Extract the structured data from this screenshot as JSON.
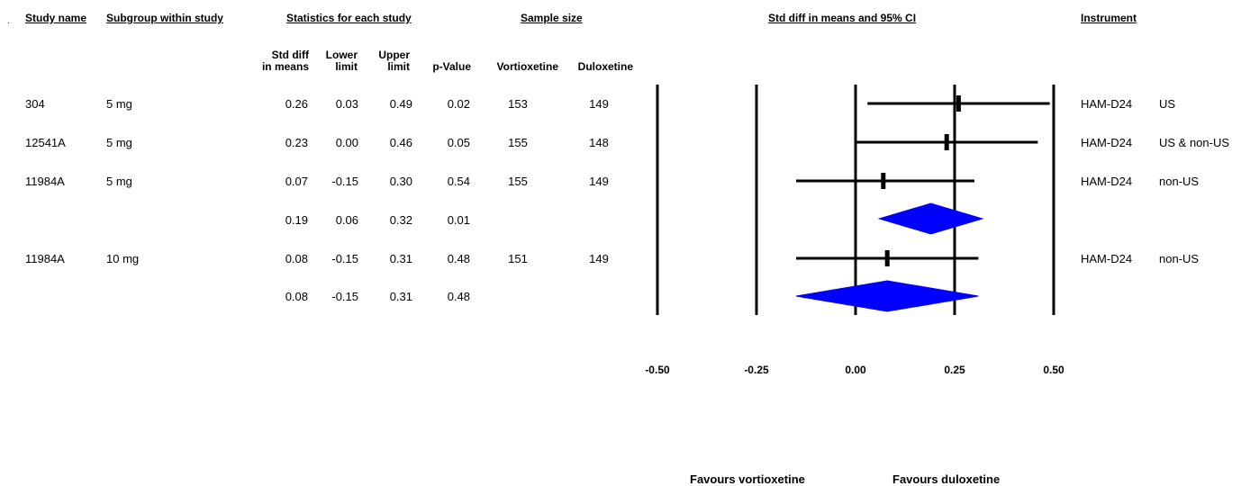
{
  "headers": {
    "study_name": "Study name",
    "subgroup": "Subgroup within study",
    "statistics": "Statistics for each study",
    "sample_size": "Sample size",
    "ci_title": "Std diff in means and 95% CI",
    "instrument": "Instrument"
  },
  "subheaders": {
    "std_diff_1": "Std diff",
    "std_diff_2": "in means",
    "lower_1": "Lower",
    "lower_2": "limit",
    "upper_1": "Upper",
    "upper_2": "limit",
    "pvalue": "p-Value",
    "vortioxetine": "Vortioxetine",
    "duloxetine": "Duloxetine"
  },
  "rows": [
    {
      "study": "304",
      "subgroup": "5 mg",
      "std_diff": "0.26",
      "lower": "0.03",
      "upper": "0.49",
      "p": "0.02",
      "vort": "153",
      "dulo": "149",
      "instrument": "HAM-D24",
      "region": "US"
    },
    {
      "study": "12541A",
      "subgroup": "5 mg",
      "std_diff": "0.23",
      "lower": "0.00",
      "upper": "0.46",
      "p": "0.05",
      "vort": "155",
      "dulo": "148",
      "instrument": "HAM-D24",
      "region": "US & non-US"
    },
    {
      "study": "11984A",
      "subgroup": "5 mg",
      "std_diff": "0.07",
      "lower": "-0.15",
      "upper": "0.30",
      "p": "0.54",
      "vort": "155",
      "dulo": "149",
      "instrument": "HAM-D24",
      "region": "non-US"
    },
    {
      "study": "",
      "subgroup": "",
      "std_diff": "0.19",
      "lower": "0.06",
      "upper": "0.32",
      "p": "0.01",
      "vort": "",
      "dulo": "",
      "instrument": "",
      "region": ""
    },
    {
      "study": "11984A",
      "subgroup": "10 mg",
      "std_diff": "0.08",
      "lower": "-0.15",
      "upper": "0.31",
      "p": "0.48",
      "vort": "151",
      "dulo": "149",
      "instrument": "HAM-D24",
      "region": "non-US"
    },
    {
      "study": "",
      "subgroup": "",
      "std_diff": "0.08",
      "lower": "-0.15",
      "upper": "0.31",
      "p": "0.48",
      "vort": "",
      "dulo": "",
      "instrument": "",
      "region": ""
    }
  ],
  "chart_data": {
    "type": "forest",
    "title": "Std diff in means and 95% CI",
    "xlim": [
      -0.5,
      0.5
    ],
    "xticks": [
      "-0.50",
      "-0.25",
      "0.00",
      "0.25",
      "0.50"
    ],
    "xtick_values": [
      -0.5,
      -0.25,
      0.0,
      0.25,
      0.5
    ],
    "left_label": "Favours vortioxetine",
    "right_label": "Favours duloxetine",
    "marker_color": "#0000ff",
    "points": [
      {
        "kind": "study",
        "estimate": 0.26,
        "lower": 0.03,
        "upper": 0.49
      },
      {
        "kind": "study",
        "estimate": 0.23,
        "lower": 0.0,
        "upper": 0.46
      },
      {
        "kind": "study",
        "estimate": 0.07,
        "lower": -0.15,
        "upper": 0.3
      },
      {
        "kind": "summary",
        "estimate": 0.19,
        "lower": 0.06,
        "upper": 0.32
      },
      {
        "kind": "study",
        "estimate": 0.08,
        "lower": -0.15,
        "upper": 0.31
      },
      {
        "kind": "summary",
        "estimate": 0.08,
        "lower": -0.15,
        "upper": 0.31
      }
    ]
  }
}
